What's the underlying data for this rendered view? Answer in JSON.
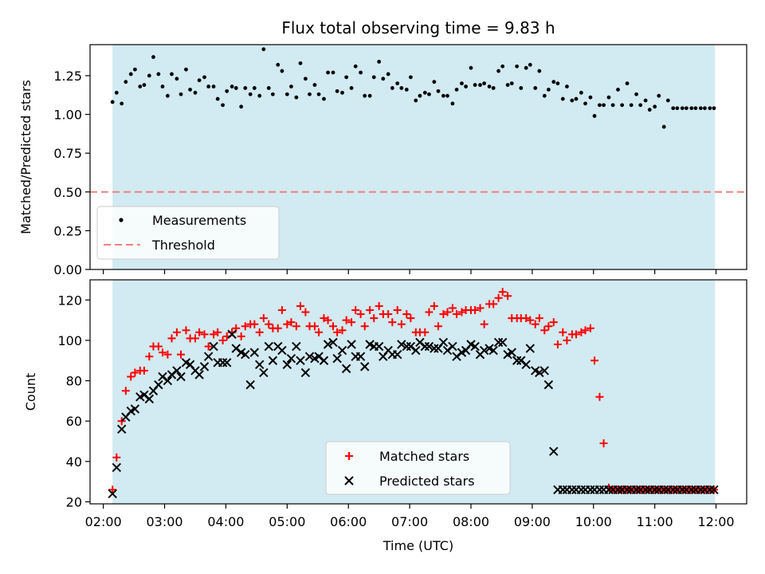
{
  "figure": {
    "title": "Flux total observing time = 9.83 h"
  },
  "colors": {
    "observing_band": "#add8e6",
    "measurements": "#000000",
    "threshold": "#f08080",
    "matched": "#ff0000",
    "predicted": "#000000"
  },
  "chart_data": [
    {
      "type": "scatter",
      "panel": "top",
      "xlabel": "",
      "ylabel": "Matched/Predicted stars",
      "ylim": [
        0,
        1.45
      ],
      "yticks": [
        0.0,
        0.25,
        0.5,
        0.75,
        1.0,
        1.25
      ],
      "ytick_labels": [
        "0.00",
        "0.25",
        "0.50",
        "0.75",
        "1.00",
        "1.25"
      ],
      "xlim": [
        "01:47",
        "12:30"
      ],
      "observing_window": [
        "02:09",
        "11:59"
      ],
      "threshold": 0.5,
      "legend": {
        "placement": "lower left",
        "entries": [
          "Measurements",
          "Threshold"
        ]
      },
      "series": [
        {
          "name": "Measurements",
          "marker": "dot",
          "x": [
            "02:09",
            "02:13",
            "02:18",
            "02:22",
            "02:27",
            "02:31",
            "02:36",
            "02:40",
            "02:45",
            "02:49",
            "02:54",
            "02:58",
            "03:03",
            "03:07",
            "03:12",
            "03:16",
            "03:21",
            "03:25",
            "03:30",
            "03:34",
            "03:39",
            "03:43",
            "03:48",
            "03:52",
            "03:57",
            "04:01",
            "04:06",
            "04:10",
            "04:15",
            "04:19",
            "04:24",
            "04:28",
            "04:33",
            "04:37",
            "04:42",
            "04:46",
            "04:51",
            "04:55",
            "05:00",
            "05:04",
            "05:09",
            "05:13",
            "05:18",
            "05:22",
            "05:27",
            "05:31",
            "05:36",
            "05:40",
            "05:45",
            "05:49",
            "05:54",
            "05:58",
            "06:03",
            "06:07",
            "06:12",
            "06:16",
            "06:21",
            "06:25",
            "06:30",
            "06:34",
            "06:39",
            "06:43",
            "06:48",
            "06:52",
            "06:57",
            "07:01",
            "07:06",
            "07:10",
            "07:15",
            "07:19",
            "07:24",
            "07:28",
            "07:33",
            "07:37",
            "07:42",
            "07:46",
            "07:51",
            "07:55",
            "08:00",
            "08:04",
            "08:09",
            "08:13",
            "08:18",
            "08:22",
            "08:27",
            "08:31",
            "08:36",
            "08:40",
            "08:45",
            "08:49",
            "08:54",
            "08:58",
            "09:03",
            "09:07",
            "09:12",
            "09:16",
            "09:21",
            "09:25",
            "09:30",
            "09:34",
            "09:39",
            "09:43",
            "09:48",
            "09:52",
            "09:57",
            "10:01",
            "10:06",
            "10:10",
            "10:15",
            "10:19",
            "10:24",
            "10:28",
            "10:33",
            "10:37",
            "10:42",
            "10:46",
            "10:51",
            "10:55",
            "11:00",
            "11:04",
            "11:09",
            "11:13",
            "11:18",
            "11:22",
            "11:27",
            "11:31",
            "11:36",
            "11:40",
            "11:45",
            "11:49",
            "11:54",
            "11:58"
          ],
          "y": [
            1.08,
            1.14,
            1.07,
            1.21,
            1.26,
            1.29,
            1.18,
            1.19,
            1.25,
            1.37,
            1.26,
            1.18,
            1.12,
            1.26,
            1.23,
            1.13,
            1.29,
            1.16,
            1.14,
            1.22,
            1.24,
            1.18,
            1.18,
            1.1,
            1.06,
            1.15,
            1.18,
            1.17,
            1.05,
            1.17,
            1.13,
            1.17,
            1.12,
            1.42,
            1.17,
            1.13,
            1.32,
            1.28,
            1.13,
            1.18,
            1.11,
            1.33,
            1.23,
            1.13,
            1.19,
            1.13,
            1.1,
            1.27,
            1.27,
            1.15,
            1.14,
            1.24,
            1.17,
            1.31,
            1.27,
            1.12,
            1.12,
            1.24,
            1.34,
            1.23,
            1.26,
            1.17,
            1.2,
            1.17,
            1.16,
            1.24,
            1.09,
            1.12,
            1.14,
            1.13,
            1.21,
            1.15,
            1.12,
            1.12,
            1.07,
            1.16,
            1.2,
            1.18,
            1.3,
            1.19,
            1.19,
            1.2,
            1.18,
            1.17,
            1.28,
            1.31,
            1.19,
            1.2,
            1.31,
            1.17,
            1.3,
            1.32,
            1.17,
            1.28,
            1.12,
            1.16,
            1.21,
            1.2,
            1.1,
            1.18,
            1.09,
            1.1,
            1.14,
            1.07,
            1.11,
            0.99,
            1.06,
            1.06,
            1.11,
            1.06,
            1.16,
            1.06,
            1.2,
            1.06,
            1.13,
            1.06,
            1.09,
            1.03,
            1.05,
            1.12,
            0.92,
            1.09,
            1.04,
            1.04,
            1.04,
            1.04,
            1.04,
            1.04,
            1.04,
            1.04,
            1.04,
            1.04
          ]
        },
        {
          "name": "Threshold",
          "marker": "dashed-line",
          "y": 0.5
        }
      ]
    },
    {
      "type": "scatter",
      "panel": "bottom",
      "xlabel": "Time (UTC)",
      "ylabel": "Count",
      "ylim": [
        19,
        130
      ],
      "yticks": [
        20,
        40,
        60,
        80,
        100,
        120
      ],
      "ytick_labels": [
        "20",
        "40",
        "60",
        "80",
        "100",
        "120"
      ],
      "xlim": [
        "01:47",
        "12:30"
      ],
      "xticks": [
        "02:00",
        "03:00",
        "04:00",
        "05:00",
        "06:00",
        "07:00",
        "08:00",
        "09:00",
        "10:00",
        "11:00",
        "12:00"
      ],
      "observing_window": [
        "02:09",
        "11:59"
      ],
      "legend": {
        "placement": "lower center",
        "entries": [
          "Matched stars",
          "Predicted stars"
        ]
      },
      "series": [
        {
          "name": "Matched stars",
          "marker": "plus",
          "x": [
            "02:09",
            "02:13",
            "02:18",
            "02:22",
            "02:27",
            "02:31",
            "02:36",
            "02:40",
            "02:45",
            "02:49",
            "02:54",
            "02:58",
            "03:03",
            "03:07",
            "03:12",
            "03:16",
            "03:21",
            "03:25",
            "03:30",
            "03:34",
            "03:39",
            "03:43",
            "03:48",
            "03:52",
            "03:57",
            "04:01",
            "04:06",
            "04:10",
            "04:15",
            "04:19",
            "04:24",
            "04:28",
            "04:33",
            "04:37",
            "04:42",
            "04:46",
            "04:51",
            "04:55",
            "05:00",
            "05:04",
            "05:09",
            "05:13",
            "05:18",
            "05:22",
            "05:27",
            "05:31",
            "05:36",
            "05:40",
            "05:45",
            "05:49",
            "05:54",
            "05:58",
            "06:03",
            "06:07",
            "06:12",
            "06:16",
            "06:21",
            "06:25",
            "06:30",
            "06:34",
            "06:39",
            "06:43",
            "06:48",
            "06:52",
            "06:57",
            "07:01",
            "07:06",
            "07:10",
            "07:15",
            "07:19",
            "07:24",
            "07:28",
            "07:33",
            "07:37",
            "07:42",
            "07:46",
            "07:51",
            "07:55",
            "08:00",
            "08:04",
            "08:09",
            "08:13",
            "08:18",
            "08:22",
            "08:27",
            "08:31",
            "08:36",
            "08:40",
            "08:45",
            "08:49",
            "08:54",
            "08:58",
            "09:03",
            "09:07",
            "09:12",
            "09:16",
            "09:21",
            "09:25",
            "09:30",
            "09:34",
            "09:39",
            "09:43",
            "09:48",
            "09:52",
            "09:57",
            "10:01",
            "10:06",
            "10:10",
            "10:15",
            "10:19",
            "10:24",
            "10:28",
            "10:33",
            "10:37",
            "10:42",
            "10:46",
            "10:51",
            "10:55",
            "11:00",
            "11:04",
            "11:09",
            "11:13",
            "11:18",
            "11:22",
            "11:27",
            "11:31",
            "11:36",
            "11:40",
            "11:45",
            "11:49",
            "11:54",
            "11:58"
          ],
          "y": [
            26,
            42,
            60,
            75,
            82,
            84,
            85,
            85,
            92,
            97,
            97,
            94,
            93,
            101,
            104,
            93,
            105,
            101,
            101,
            104,
            103,
            97,
            103,
            104,
            100,
            102,
            104,
            106,
            102,
            107,
            108,
            108,
            104,
            111,
            108,
            106,
            106,
            115,
            108,
            109,
            107,
            117,
            114,
            107,
            107,
            104,
            111,
            110,
            107,
            104,
            105,
            110,
            109,
            115,
            113,
            107,
            115,
            111,
            117,
            113,
            113,
            109,
            115,
            108,
            113,
            111,
            104,
            104,
            104,
            114,
            117,
            107,
            113,
            114,
            116,
            113,
            114,
            115,
            115,
            115,
            116,
            108,
            118,
            118,
            121,
            124,
            122,
            111,
            111,
            111,
            111,
            110,
            108,
            111,
            105,
            107,
            109,
            98,
            104,
            100,
            103,
            103,
            104,
            105,
            106,
            90,
            72,
            49,
            27,
            26,
            26,
            26,
            26,
            26,
            26,
            26,
            26,
            26,
            26,
            26,
            26,
            26,
            26,
            26,
            26,
            26,
            26,
            26,
            26,
            26,
            26,
            26
          ]
        },
        {
          "name": "Predicted stars",
          "marker": "x",
          "x": [
            "02:09",
            "02:13",
            "02:18",
            "02:22",
            "02:27",
            "02:31",
            "02:36",
            "02:40",
            "02:45",
            "02:49",
            "02:54",
            "02:58",
            "03:03",
            "03:07",
            "03:12",
            "03:16",
            "03:21",
            "03:25",
            "03:30",
            "03:34",
            "03:39",
            "03:43",
            "03:48",
            "03:52",
            "03:57",
            "04:01",
            "04:06",
            "04:10",
            "04:15",
            "04:19",
            "04:24",
            "04:28",
            "04:33",
            "04:37",
            "04:42",
            "04:46",
            "04:51",
            "04:55",
            "05:00",
            "05:04",
            "05:09",
            "05:13",
            "05:18",
            "05:22",
            "05:27",
            "05:31",
            "05:36",
            "05:40",
            "05:45",
            "05:49",
            "05:54",
            "05:58",
            "06:03",
            "06:07",
            "06:12",
            "06:16",
            "06:21",
            "06:25",
            "06:30",
            "06:34",
            "06:39",
            "06:43",
            "06:48",
            "06:52",
            "06:57",
            "07:01",
            "07:06",
            "07:10",
            "07:15",
            "07:19",
            "07:24",
            "07:28",
            "07:33",
            "07:37",
            "07:42",
            "07:46",
            "07:51",
            "07:55",
            "08:00",
            "08:04",
            "08:09",
            "08:13",
            "08:18",
            "08:22",
            "08:27",
            "08:31",
            "08:36",
            "08:40",
            "08:45",
            "08:49",
            "08:54",
            "08:58",
            "09:03",
            "09:07",
            "09:12",
            "09:16",
            "09:21",
            "09:25",
            "09:30",
            "09:34",
            "09:39",
            "09:43",
            "09:48",
            "09:52",
            "09:57",
            "10:01",
            "10:06",
            "10:10",
            "10:15",
            "10:19",
            "10:24",
            "10:28",
            "10:33",
            "10:37",
            "10:42",
            "10:46",
            "10:51",
            "10:55",
            "11:00",
            "11:04",
            "11:09",
            "11:13",
            "11:18",
            "11:22",
            "11:27",
            "11:31",
            "11:36",
            "11:40",
            "11:45",
            "11:49",
            "11:54",
            "11:58"
          ],
          "y": [
            24,
            37,
            56,
            62,
            65,
            66,
            72,
            73,
            71,
            75,
            78,
            82,
            80,
            83,
            85,
            82,
            89,
            88,
            85,
            83,
            87,
            92,
            97,
            89,
            89,
            89,
            103,
            96,
            94,
            93,
            78,
            94,
            88,
            84,
            97,
            90,
            97,
            95,
            88,
            91,
            97,
            90,
            84,
            92,
            91,
            92,
            90,
            98,
            99,
            91,
            95,
            86,
            98,
            92,
            92,
            87,
            98,
            97,
            97,
            92,
            95,
            93,
            93,
            98,
            97,
            97,
            95,
            99,
            97,
            97,
            96,
            96,
            99,
            95,
            97,
            92,
            94,
            95,
            98,
            97,
            93,
            95,
            96,
            95,
            99,
            99,
            93,
            94,
            90,
            90,
            88,
            96,
            85,
            84,
            85,
            78,
            45,
            26,
            26,
            26,
            26,
            26,
            26,
            26,
            26,
            26,
            26,
            26,
            26,
            26,
            26,
            26,
            26,
            26,
            26,
            26,
            26,
            26,
            26,
            26,
            26,
            26,
            26,
            26,
            26,
            26,
            26,
            26,
            26,
            26,
            26,
            26
          ]
        }
      ]
    }
  ]
}
